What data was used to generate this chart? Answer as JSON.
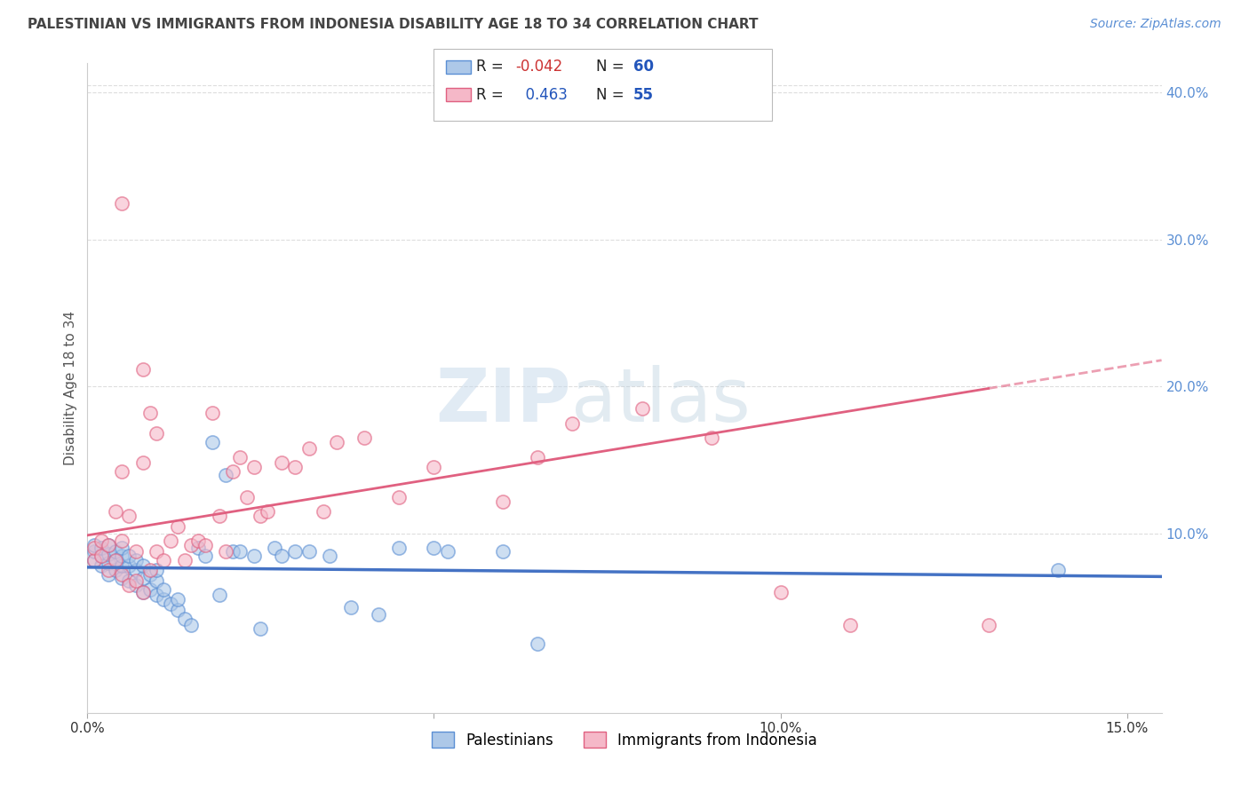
{
  "title": "PALESTINIAN VS IMMIGRANTS FROM INDONESIA DISABILITY AGE 18 TO 34 CORRELATION CHART",
  "source": "Source: ZipAtlas.com",
  "ylabel": "Disability Age 18 to 34",
  "xlim": [
    0.0,
    0.155
  ],
  "ylim": [
    -0.022,
    0.42
  ],
  "xticks": [
    0.0,
    0.05,
    0.1,
    0.15
  ],
  "xticklabels": [
    "0.0%",
    "",
    "10.0%",
    "15.0%"
  ],
  "yticks_right": [
    0.1,
    0.2,
    0.3,
    0.4
  ],
  "yticklabels_right": [
    "10.0%",
    "20.0%",
    "30.0%",
    "40.0%"
  ],
  "R_blue": -0.042,
  "N_blue": 60,
  "R_pink": 0.463,
  "N_pink": 55,
  "blue_scatter_color": "#adc8e8",
  "blue_edge_color": "#5b8fd4",
  "pink_scatter_color": "#f5b8c8",
  "pink_edge_color": "#e06080",
  "blue_line_color": "#4472c4",
  "pink_line_color": "#e06080",
  "legend_label_blue": "Palestinians",
  "legend_label_pink": "Immigrants from Indonesia",
  "blue_x": [
    0.001,
    0.001,
    0.001,
    0.002,
    0.002,
    0.002,
    0.003,
    0.003,
    0.003,
    0.003,
    0.004,
    0.004,
    0.004,
    0.005,
    0.005,
    0.005,
    0.005,
    0.006,
    0.006,
    0.006,
    0.007,
    0.007,
    0.007,
    0.008,
    0.008,
    0.008,
    0.009,
    0.009,
    0.01,
    0.01,
    0.01,
    0.011,
    0.011,
    0.012,
    0.013,
    0.013,
    0.014,
    0.015,
    0.016,
    0.017,
    0.018,
    0.019,
    0.02,
    0.021,
    0.022,
    0.024,
    0.025,
    0.027,
    0.028,
    0.03,
    0.032,
    0.035,
    0.038,
    0.042,
    0.045,
    0.05,
    0.06,
    0.065,
    0.14,
    0.052
  ],
  "blue_y": [
    0.082,
    0.088,
    0.092,
    0.078,
    0.085,
    0.09,
    0.072,
    0.08,
    0.086,
    0.092,
    0.075,
    0.082,
    0.088,
    0.07,
    0.078,
    0.085,
    0.09,
    0.068,
    0.078,
    0.085,
    0.065,
    0.075,
    0.082,
    0.06,
    0.07,
    0.078,
    0.062,
    0.072,
    0.058,
    0.068,
    0.075,
    0.055,
    0.062,
    0.052,
    0.048,
    0.055,
    0.042,
    0.038,
    0.09,
    0.085,
    0.162,
    0.058,
    0.14,
    0.088,
    0.088,
    0.085,
    0.035,
    0.09,
    0.085,
    0.088,
    0.088,
    0.085,
    0.05,
    0.045,
    0.09,
    0.09,
    0.088,
    0.025,
    0.075,
    0.088
  ],
  "pink_x": [
    0.001,
    0.001,
    0.002,
    0.002,
    0.003,
    0.003,
    0.004,
    0.004,
    0.005,
    0.005,
    0.005,
    0.006,
    0.006,
    0.007,
    0.007,
    0.008,
    0.008,
    0.009,
    0.009,
    0.01,
    0.01,
    0.011,
    0.012,
    0.013,
    0.014,
    0.015,
    0.016,
    0.017,
    0.018,
    0.019,
    0.02,
    0.021,
    0.022,
    0.023,
    0.024,
    0.025,
    0.026,
    0.028,
    0.03,
    0.032,
    0.034,
    0.036,
    0.04,
    0.045,
    0.05,
    0.06,
    0.065,
    0.07,
    0.08,
    0.09,
    0.1,
    0.11,
    0.008,
    0.13,
    0.005
  ],
  "pink_y": [
    0.082,
    0.09,
    0.085,
    0.095,
    0.075,
    0.092,
    0.082,
    0.115,
    0.072,
    0.095,
    0.142,
    0.065,
    0.112,
    0.068,
    0.088,
    0.06,
    0.148,
    0.075,
    0.182,
    0.088,
    0.168,
    0.082,
    0.095,
    0.105,
    0.082,
    0.092,
    0.095,
    0.092,
    0.182,
    0.112,
    0.088,
    0.142,
    0.152,
    0.125,
    0.145,
    0.112,
    0.115,
    0.148,
    0.145,
    0.158,
    0.115,
    0.162,
    0.165,
    0.125,
    0.145,
    0.122,
    0.152,
    0.175,
    0.185,
    0.165,
    0.06,
    0.038,
    0.212,
    0.038,
    0.325
  ]
}
